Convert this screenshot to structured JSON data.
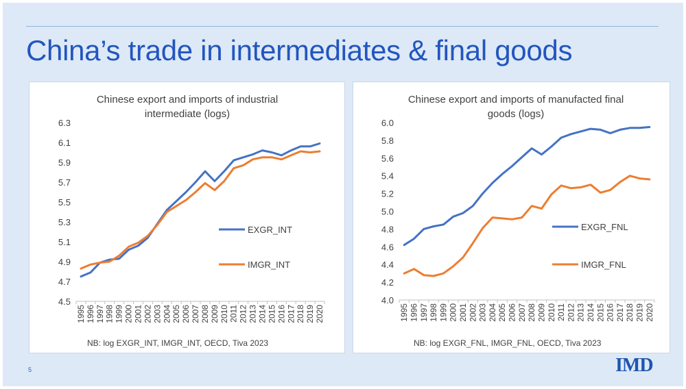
{
  "slide": {
    "title": "China’s trade in intermediates & final goods",
    "page_number": "5",
    "logo": "IMD"
  },
  "chart_data": [
    {
      "type": "line",
      "title": [
        "Chinese export and imports of industrial",
        "intermediate (logs)"
      ],
      "x": [
        "1995",
        "1996",
        "1997",
        "1998",
        "1999",
        "2000",
        "2001",
        "2002",
        "2003",
        "2004",
        "2005",
        "2006",
        "2007",
        "2008",
        "2009",
        "2010",
        "2011",
        "2012",
        "2013",
        "2014",
        "2015",
        "2016",
        "2017",
        "2018",
        "2019",
        "2020"
      ],
      "series": [
        {
          "name": "EXGR_INT",
          "color": "#4472c4",
          "values": [
            4.75,
            4.79,
            4.89,
            4.92,
            4.93,
            5.02,
            5.06,
            5.14,
            5.28,
            5.42,
            5.51,
            5.6,
            5.7,
            5.81,
            5.71,
            5.81,
            5.92,
            5.95,
            5.98,
            6.02,
            6.0,
            5.97,
            6.02,
            6.06,
            6.06,
            6.09
          ]
        },
        {
          "name": "IMGR_INT",
          "color": "#ed7d31",
          "values": [
            4.83,
            4.87,
            4.89,
            4.9,
            4.96,
            5.05,
            5.09,
            5.16,
            5.27,
            5.4,
            5.46,
            5.52,
            5.6,
            5.69,
            5.62,
            5.71,
            5.84,
            5.87,
            5.93,
            5.95,
            5.95,
            5.93,
            5.97,
            6.01,
            6.0,
            6.01
          ]
        }
      ],
      "ylim": [
        4.5,
        6.3
      ],
      "yticks": [
        "4.5",
        "4.7",
        "4.9",
        "5.1",
        "5.3",
        "5.5",
        "5.7",
        "5.9",
        "6.1",
        "6.3"
      ],
      "legend_position": "center-right",
      "grid": false,
      "note": "NB: log EXGR_INT, IMGR_INT, OECD, Tiva 2023"
    },
    {
      "type": "line",
      "title": [
        "Chinese export and imports of manufacted final",
        "goods (logs)"
      ],
      "x": [
        "1995",
        "1996",
        "1997",
        "1998",
        "1999",
        "2000",
        "2001",
        "2002",
        "2003",
        "2004",
        "2005",
        "2006",
        "2007",
        "2008",
        "2009",
        "2010",
        "2011",
        "2012",
        "2013",
        "2014",
        "2015",
        "2016",
        "2017",
        "2018",
        "2019",
        "2020"
      ],
      "series": [
        {
          "name": "EXGR_FNL",
          "color": "#4472c4",
          "values": [
            4.62,
            4.69,
            4.8,
            4.83,
            4.85,
            4.94,
            4.98,
            5.06,
            5.2,
            5.32,
            5.42,
            5.51,
            5.61,
            5.71,
            5.64,
            5.73,
            5.83,
            5.87,
            5.9,
            5.93,
            5.92,
            5.88,
            5.92,
            5.94,
            5.94,
            5.95
          ]
        },
        {
          "name": "IMGR_FNL",
          "color": "#ed7d31",
          "values": [
            4.3,
            4.35,
            4.28,
            4.27,
            4.3,
            4.38,
            4.48,
            4.64,
            4.81,
            4.93,
            4.92,
            4.91,
            4.93,
            5.06,
            5.03,
            5.19,
            5.29,
            5.26,
            5.27,
            5.3,
            5.21,
            5.24,
            5.33,
            5.4,
            5.37,
            5.36
          ]
        }
      ],
      "ylim": [
        4.0,
        6.0
      ],
      "yticks": [
        "4.0",
        "4.2",
        "4.4",
        "4.6",
        "4.8",
        "5.0",
        "5.2",
        "5.4",
        "5.6",
        "5.8",
        "6.0"
      ],
      "legend_position": "center-right",
      "grid": false,
      "note": "NB: log EXGR_FNL, IMGR_FNL, OECD, Tiva 2023"
    }
  ]
}
